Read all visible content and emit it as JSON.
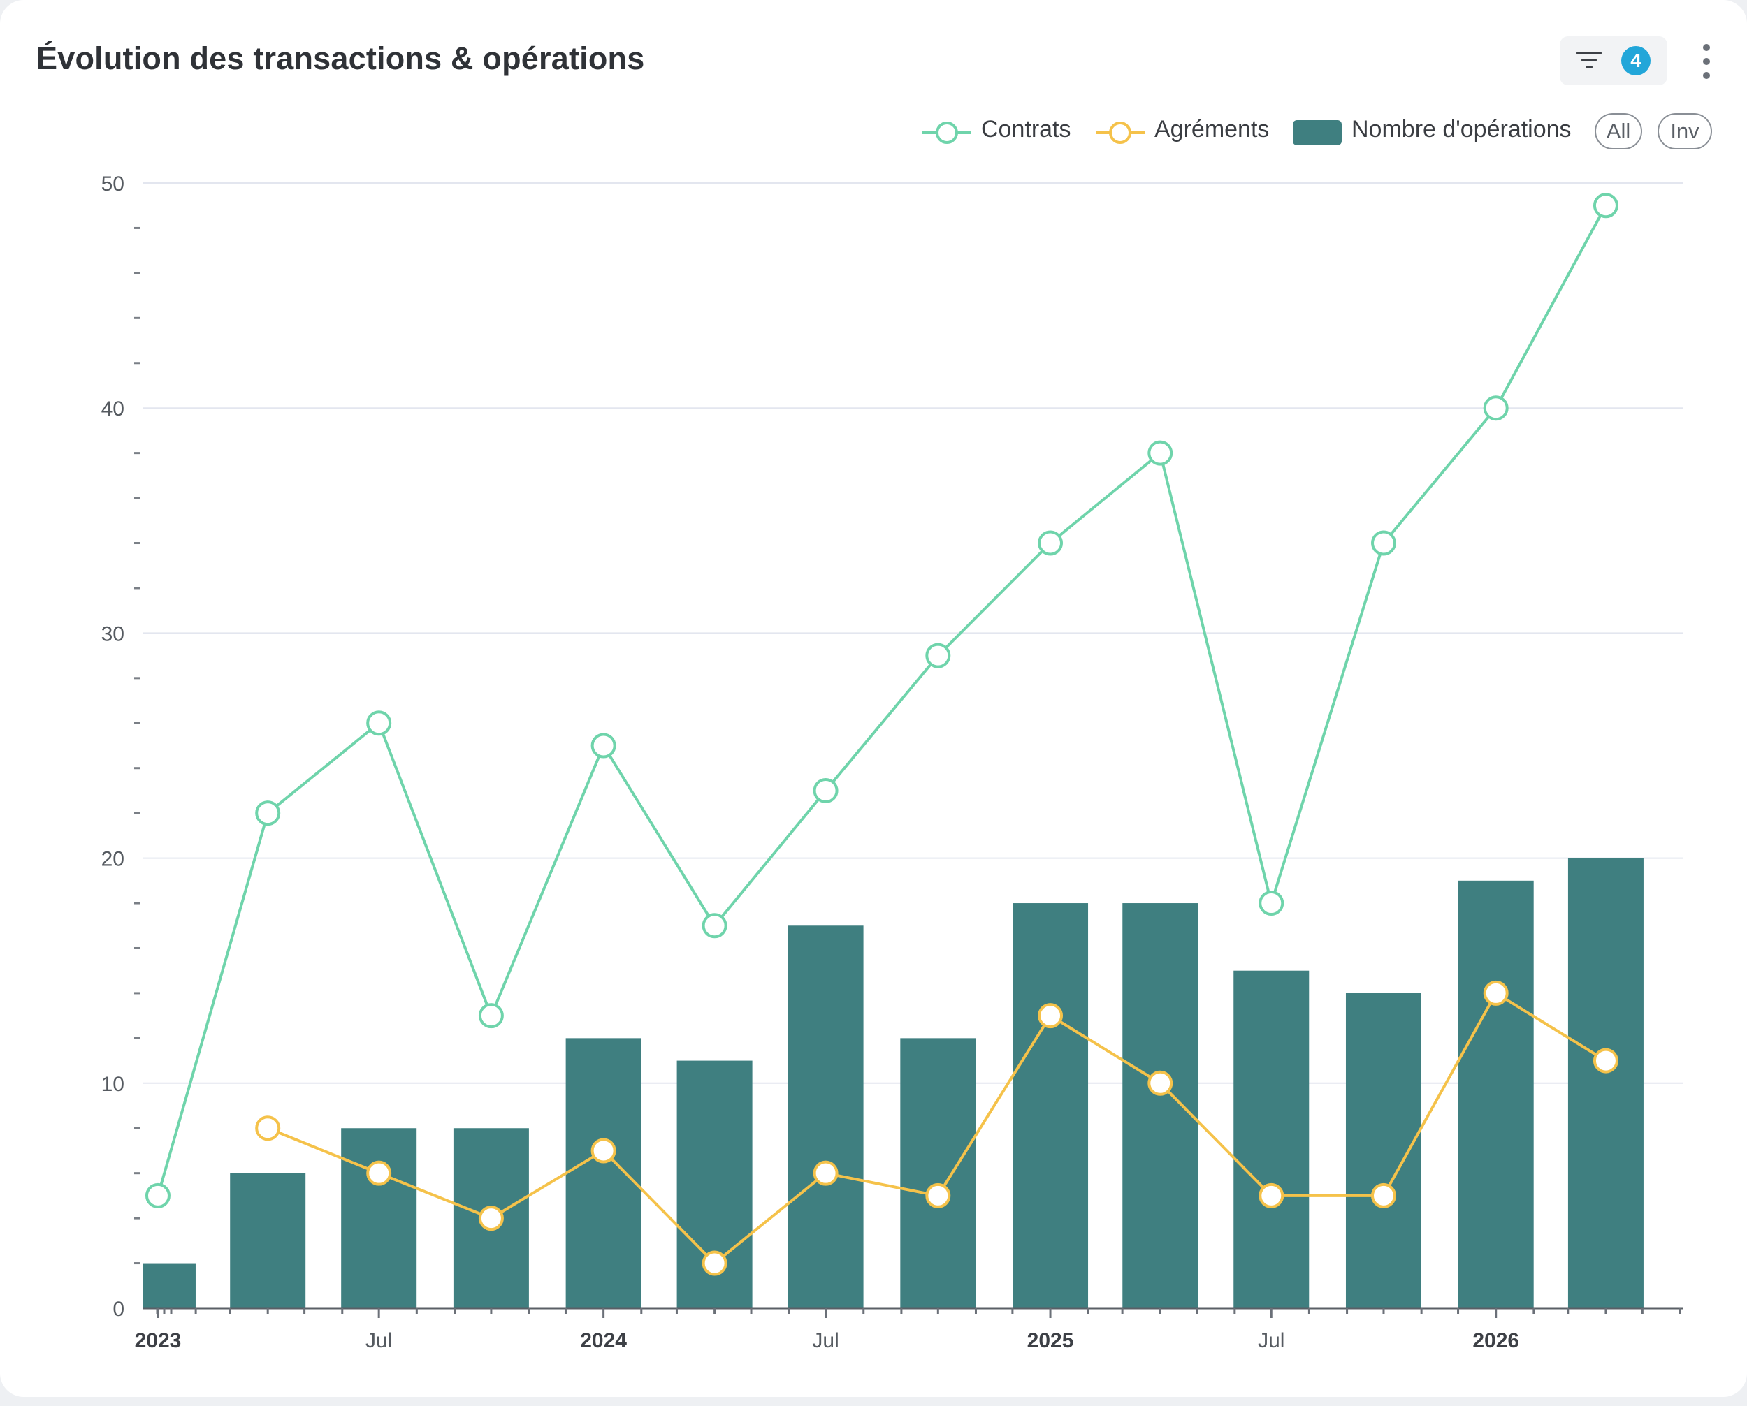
{
  "header": {
    "title": "Évolution des transactions & opérations",
    "filter_count": "4",
    "filter_icon": "filter-icon",
    "more_icon": "more-vertical-icon"
  },
  "legend": {
    "items": [
      {
        "label": "Contrats",
        "color": "#6fd4ab",
        "shape": "line-circle"
      },
      {
        "label": "Agréments",
        "color": "#f5c24a",
        "shape": "line-circle"
      },
      {
        "label": "Nombre d'opérations",
        "color": "#3f7f80",
        "shape": "bar"
      }
    ],
    "buttons": [
      "All",
      "Inv"
    ]
  },
  "chart_data": {
    "type": "bar",
    "x": [
      "2023-01",
      "2023-04",
      "2023-07",
      "2023-10",
      "2024-01",
      "2024-04",
      "2024-07",
      "2024-10",
      "2025-01",
      "2025-04",
      "2025-07",
      "2025-10",
      "2026-01",
      "2026-04"
    ],
    "series": [
      {
        "name": "Nombre d'opérations",
        "type": "bar",
        "color": "#3f7f80",
        "values": [
          2,
          6,
          8,
          8,
          12,
          11,
          17,
          12,
          18,
          18,
          15,
          14,
          19,
          20
        ]
      },
      {
        "name": "Contrats",
        "type": "line",
        "color": "#6fd4ab",
        "values": [
          5,
          22,
          26,
          13,
          25,
          17,
          23,
          29,
          34,
          38,
          18,
          34,
          40,
          49
        ]
      },
      {
        "name": "Agréments",
        "type": "line",
        "color": "#f5c24a",
        "values": [
          null,
          8,
          6,
          4,
          7,
          2,
          6,
          5,
          13,
          10,
          5,
          5,
          14,
          11
        ]
      }
    ],
    "x_tick_labels": [
      {
        "label": "2023",
        "x": "2023-01",
        "major": true
      },
      {
        "label": "Jul",
        "x": "2023-07",
        "major": false
      },
      {
        "label": "2024",
        "x": "2024-01",
        "major": true
      },
      {
        "label": "Jul",
        "x": "2024-07",
        "major": false
      },
      {
        "label": "2025",
        "x": "2025-01",
        "major": true
      },
      {
        "label": "Jul",
        "x": "2025-07",
        "major": false
      },
      {
        "label": "2026",
        "x": "2026-01",
        "major": true
      }
    ],
    "y_tick_labels": [
      "0",
      "10",
      "20",
      "30",
      "40",
      "50"
    ],
    "ylim": [
      0,
      50
    ],
    "grid": true,
    "legend_position": "top-right",
    "title": "Évolution des transactions & opérations",
    "xlabel": "",
    "ylabel": ""
  }
}
